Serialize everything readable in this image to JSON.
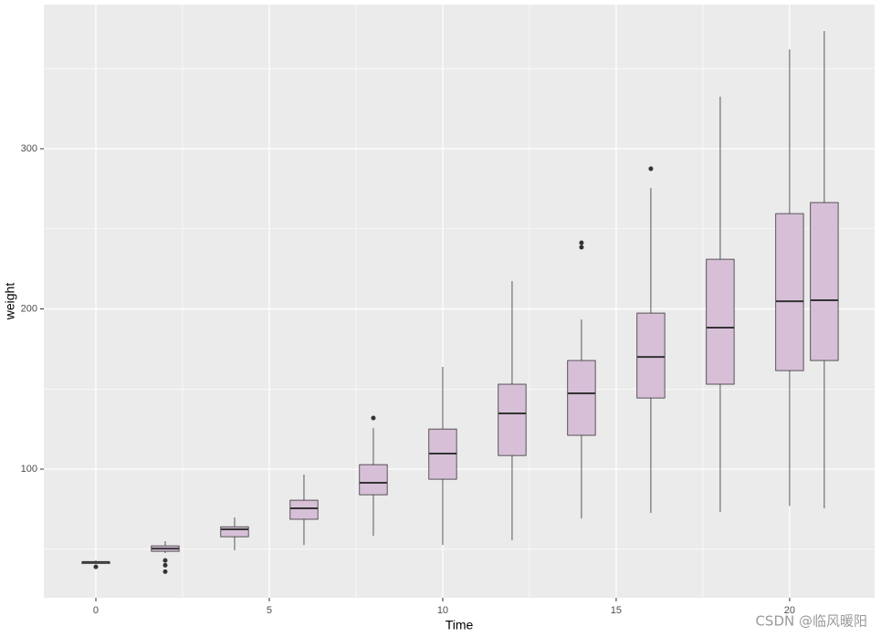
{
  "chart_data": {
    "type": "box",
    "x_label": "Time",
    "y_label": "weight",
    "watermark": "CSDN @临风暖阳",
    "fill": "#d8bfd8",
    "stroke": "#333333",
    "grid": true,
    "xlim": [
      -1.5,
      22.45
    ],
    "ylim": [
      19.7,
      390
    ],
    "xticks": [
      0,
      5,
      10,
      15,
      20
    ],
    "yticks": [
      100,
      200,
      300
    ],
    "x": [
      0,
      2,
      4,
      6,
      8,
      10,
      12,
      14,
      16,
      18,
      20,
      21
    ],
    "boxes": [
      {
        "low": 41,
        "q1": 41,
        "median": 42,
        "q3": 42,
        "high": 43,
        "outliers": [
          39
        ]
      },
      {
        "low": 47.6,
        "q1": 48.7,
        "median": 50.4,
        "q3": 52.1,
        "high": 55,
        "outliers": [
          43,
          40,
          36
        ]
      },
      {
        "low": 49.3,
        "q1": 57.8,
        "median": 62.4,
        "q3": 64,
        "high": 69.8,
        "outliers": []
      },
      {
        "low": 52.7,
        "q1": 68.7,
        "median": 75.5,
        "q3": 80.6,
        "high": 96.6,
        "outliers": []
      },
      {
        "low": 58.4,
        "q1": 84,
        "median": 91.5,
        "q3": 102.8,
        "high": 125.6,
        "outliers": [
          131.9
        ]
      },
      {
        "low": 52.7,
        "q1": 93.7,
        "median": 109.7,
        "q3": 125,
        "high": 163.8,
        "outliers": []
      },
      {
        "low": 55.6,
        "q1": 108.5,
        "median": 134.8,
        "q3": 153,
        "high": 217.4,
        "outliers": []
      },
      {
        "low": 69.2,
        "q1": 121.1,
        "median": 147.3,
        "q3": 167.8,
        "high": 193.4,
        "outliers": [
          241.3,
          238.5
        ]
      },
      {
        "low": 72.6,
        "q1": 144.4,
        "median": 170,
        "q3": 197.4,
        "high": 275.5,
        "outliers": [
          287.5
        ]
      },
      {
        "low": 73.2,
        "q1": 153,
        "median": 188.3,
        "q3": 231,
        "high": 332.5,
        "outliers": []
      },
      {
        "low": 77,
        "q1": 161.5,
        "median": 204.8,
        "q3": 259.5,
        "high": 362,
        "outliers": []
      },
      {
        "low": 75.5,
        "q1": 167.8,
        "median": 205.4,
        "q3": 266.4,
        "high": 373.5,
        "outliers": []
      }
    ]
  }
}
